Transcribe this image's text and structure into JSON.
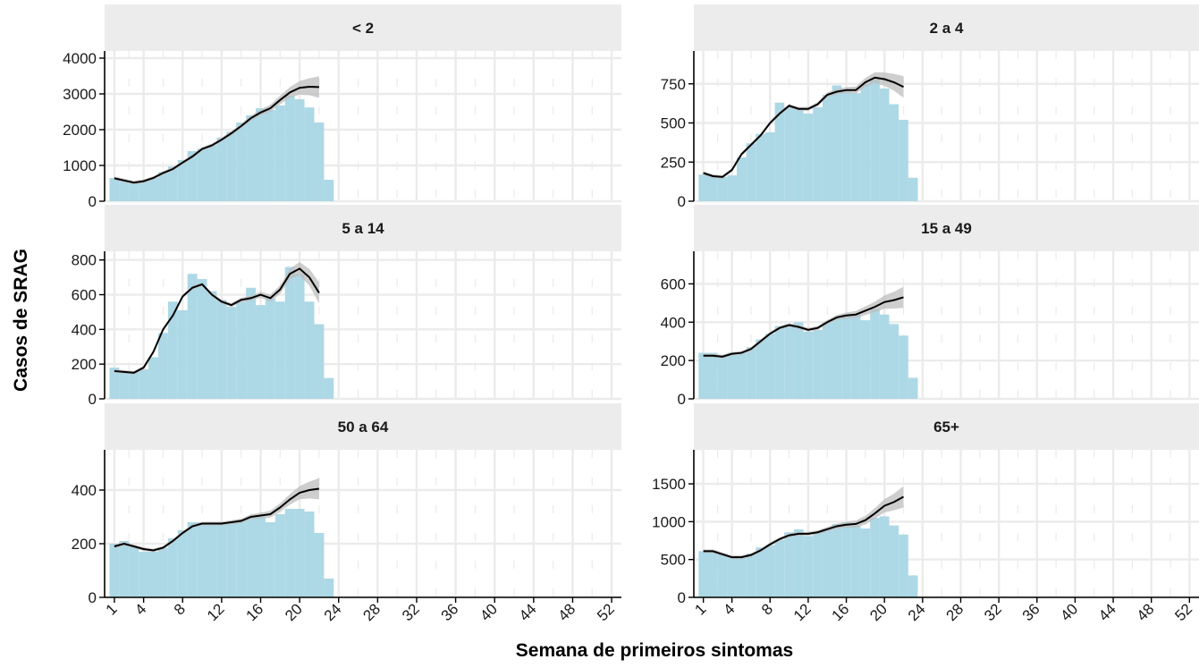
{
  "colors": {
    "bar": "#add8e6",
    "line": "#000000",
    "ribbon": "#bdbdbd",
    "strip": "#ececec",
    "grid": "#ebebeb"
  },
  "chart_data": {
    "type": "bar",
    "overlay": "line",
    "xlabel": "Semana de primeiros sintomas",
    "ylabel": "Casos de SRAG",
    "xlim": [
      0,
      53
    ],
    "x_ticks": [
      1,
      4,
      8,
      12,
      16,
      20,
      24,
      28,
      32,
      36,
      40,
      44,
      48,
      52
    ],
    "x": [
      1,
      2,
      3,
      4,
      5,
      6,
      7,
      8,
      9,
      10,
      11,
      12,
      13,
      14,
      15,
      16,
      17,
      18,
      19,
      20,
      21,
      22,
      23
    ],
    "panels": [
      {
        "title": "< 2",
        "ylim": [
          0,
          4200
        ],
        "y_ticks": [
          0,
          1000,
          2000,
          3000,
          4000
        ],
        "bars": [
          650,
          560,
          500,
          560,
          650,
          820,
          970,
          1150,
          1400,
          1470,
          1560,
          1780,
          1940,
          2200,
          2400,
          2600,
          2550,
          2680,
          2950,
          2850,
          2620,
          2200,
          600
        ],
        "trend": [
          640,
          580,
          520,
          560,
          650,
          790,
          900,
          1080,
          1250,
          1460,
          1560,
          1720,
          1900,
          2100,
          2320,
          2480,
          2600,
          2830,
          3040,
          3170,
          3200,
          3190
        ]
      },
      {
        "title": "2 a 4",
        "ylim": [
          0,
          960
        ],
        "y_ticks": [
          0,
          250,
          500,
          750
        ],
        "bars": [
          170,
          160,
          155,
          165,
          280,
          370,
          430,
          440,
          630,
          600,
          590,
          560,
          600,
          680,
          740,
          700,
          690,
          750,
          780,
          720,
          620,
          520,
          150
        ],
        "trend": [
          180,
          160,
          155,
          200,
          300,
          360,
          420,
          500,
          560,
          610,
          590,
          590,
          620,
          680,
          700,
          710,
          710,
          760,
          790,
          780,
          760,
          730
        ]
      },
      {
        "title": "5 a 14",
        "ylim": [
          0,
          850
        ],
        "y_ticks": [
          0,
          200,
          400,
          600,
          800
        ],
        "bars": [
          180,
          160,
          160,
          170,
          240,
          380,
          560,
          510,
          720,
          690,
          620,
          570,
          530,
          560,
          640,
          540,
          580,
          560,
          760,
          720,
          560,
          430,
          120
        ],
        "trend": [
          160,
          155,
          150,
          180,
          270,
          400,
          480,
          590,
          640,
          660,
          600,
          560,
          540,
          570,
          580,
          600,
          580,
          630,
          720,
          750,
          700,
          610
        ]
      },
      {
        "title": "15 a 49",
        "ylim": [
          0,
          770
        ],
        "y_ticks": [
          0,
          200,
          400,
          600
        ],
        "bars": [
          240,
          240,
          230,
          240,
          240,
          270,
          310,
          340,
          380,
          390,
          400,
          350,
          360,
          400,
          420,
          440,
          440,
          410,
          470,
          440,
          390,
          330,
          110
        ],
        "trend": [
          225,
          225,
          220,
          235,
          240,
          260,
          300,
          340,
          370,
          385,
          375,
          360,
          370,
          400,
          425,
          435,
          440,
          460,
          480,
          505,
          515,
          530
        ]
      },
      {
        "title": "50 a 64",
        "ylim": [
          0,
          550
        ],
        "y_ticks": [
          0,
          200,
          400
        ],
        "bars": [
          200,
          210,
          190,
          170,
          170,
          185,
          220,
          250,
          280,
          280,
          280,
          280,
          280,
          290,
          300,
          300,
          280,
          310,
          330,
          330,
          320,
          240,
          70
        ],
        "trend": [
          190,
          200,
          190,
          180,
          175,
          185,
          210,
          240,
          265,
          275,
          275,
          275,
          280,
          285,
          300,
          305,
          310,
          335,
          365,
          390,
          400,
          405
        ]
      },
      {
        "title": "65+",
        "ylim": [
          0,
          1950
        ],
        "y_ticks": [
          0,
          500,
          1000,
          1500
        ],
        "bars": [
          610,
          620,
          580,
          530,
          520,
          580,
          660,
          690,
          760,
          860,
          900,
          810,
          860,
          910,
          970,
          990,
          950,
          910,
          1050,
          1070,
          950,
          830,
          290
        ],
        "trend": [
          610,
          610,
          570,
          530,
          530,
          560,
          620,
          700,
          770,
          820,
          840,
          840,
          860,
          900,
          940,
          960,
          970,
          1020,
          1110,
          1210,
          1260,
          1330
        ]
      }
    ]
  }
}
